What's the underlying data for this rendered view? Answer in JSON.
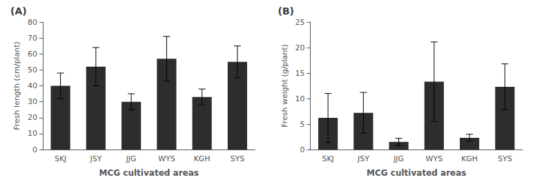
{
  "chart_data": [
    {
      "type": "bar",
      "title": "(A)",
      "categories": [
        "SKJ",
        "JSY",
        "JJG",
        "WYS",
        "KGH",
        "SYS"
      ],
      "values": [
        40,
        52,
        30,
        57,
        33,
        55
      ],
      "errors": [
        8,
        12,
        5,
        14,
        5,
        10
      ],
      "ylabel": "Fresh length (cm/plant)",
      "xlabel": "MCG cultivated areas",
      "ylim": [
        0,
        80
      ],
      "yticks": [
        0,
        10,
        20,
        30,
        40,
        50,
        60,
        70,
        80
      ],
      "color": "#2d2d2d",
      "grid": false
    },
    {
      "type": "bar",
      "title": "(B)",
      "categories": [
        "SKJ",
        "JSY",
        "JJG",
        "WYS",
        "KGH",
        "SYS"
      ],
      "values": [
        6.2,
        7.2,
        1.5,
        13.3,
        2.3,
        12.3
      ],
      "errors": [
        4.8,
        4.0,
        0.7,
        7.8,
        0.7,
        4.5
      ],
      "ylabel": "Fresh weight (g/plant)",
      "xlabel": "MCG cultivated areas",
      "ylim": [
        0,
        25
      ],
      "yticks": [
        0,
        5,
        10,
        15,
        20,
        25
      ],
      "color": "#2d2d2d",
      "grid": false
    }
  ]
}
